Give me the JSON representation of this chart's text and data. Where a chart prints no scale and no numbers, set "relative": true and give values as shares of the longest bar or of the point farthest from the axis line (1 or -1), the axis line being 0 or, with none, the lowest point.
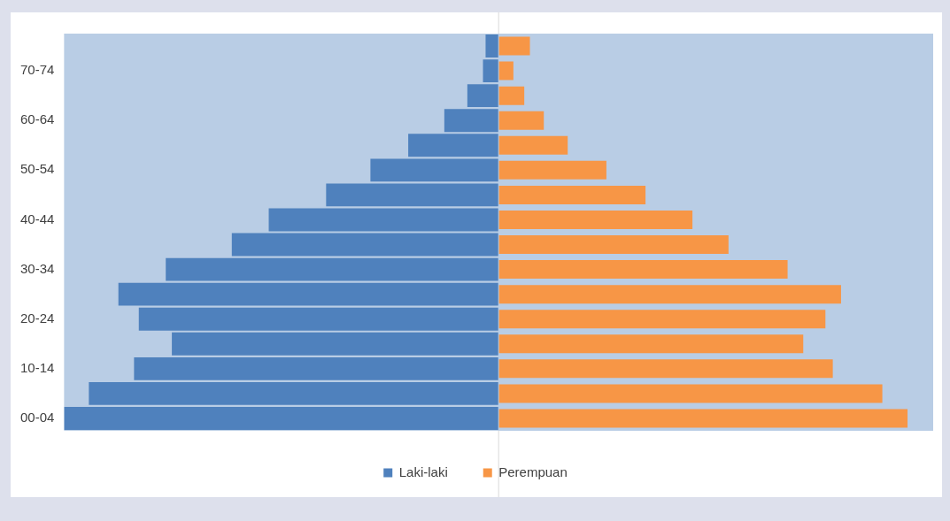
{
  "chart_data": {
    "type": "bar",
    "orientation": "horizontal",
    "relative": true,
    "legend": "bottom",
    "categories": [
      null,
      "70-74",
      null,
      "60-64",
      null,
      "50-54",
      null,
      "40-44",
      null,
      "30-34",
      null,
      "20-24",
      null,
      "10-14",
      null,
      "00-04"
    ],
    "series": [
      {
        "name": "Laki-laki",
        "color": "#4f81bd",
        "values": [
          -0.03,
          -0.036,
          -0.072,
          -0.125,
          -0.208,
          -0.295,
          -0.397,
          -0.529,
          -0.614,
          -0.766,
          -0.875,
          -0.828,
          -0.752,
          -0.839,
          -0.943,
          -1
        ]
      },
      {
        "name": "Perempuan",
        "color": "#f79646",
        "values": [
          0.072,
          0.034,
          0.059,
          0.104,
          0.159,
          0.248,
          0.338,
          0.446,
          0.529,
          0.665,
          0.788,
          0.752,
          0.701,
          0.769,
          0.883,
          0.941
        ]
      }
    ]
  }
}
